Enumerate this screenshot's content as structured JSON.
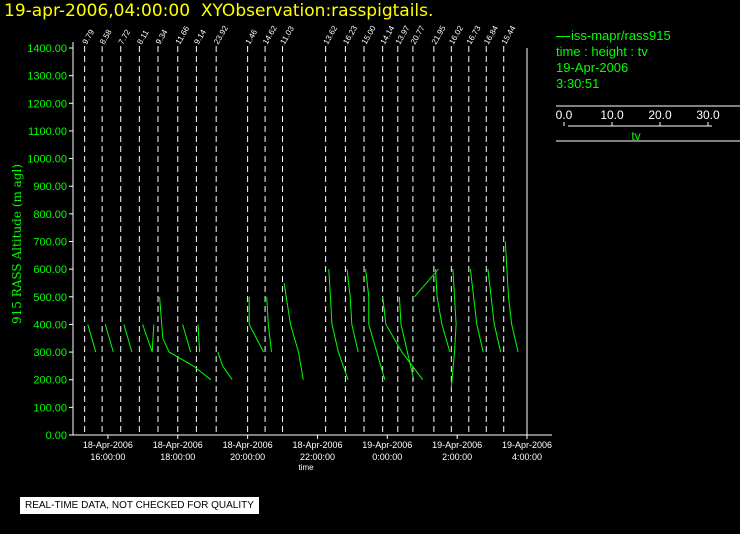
{
  "header": {
    "title": "19-apr-2006,04:00:00  XYObservation:rasspigtails."
  },
  "legend": {
    "station": "iss-mapr/rass915",
    "vars": "time : height : tv",
    "date": "19-Apr-2006",
    "time": "3:30:51",
    "scale_ticks": [
      "0.0",
      "10.0",
      "20.0",
      "30.0"
    ],
    "scale_label": "tv"
  },
  "footer": {
    "qc_note": "REAL-TIME DATA, NOT CHECKED FOR QUALITY"
  },
  "colors": {
    "background": "#000000",
    "axis": "#ffffff",
    "data": "#00ff00",
    "title": "#ffff00"
  },
  "chart_data": {
    "type": "line",
    "title": "19-apr-2006,04:00:00  XYObservation:rasspigtails.",
    "xlabel": "time",
    "ylabel": "915 RASS Altitude (m agl)",
    "ylim": [
      0,
      1400
    ],
    "yticks": [
      "0.00",
      "100.00",
      "200.00",
      "300.00",
      "400.00",
      "500.00",
      "600.00",
      "700.00",
      "800.00",
      "900.00",
      "1000.00",
      "1100.00",
      "1200.00",
      "1300.00",
      "1400.00"
    ],
    "xlim": [
      "2006-04-18T15:00",
      "2006-04-19T04:00"
    ],
    "xticks": [
      {
        "t": "2006-04-18T16:00",
        "date": "18-Apr-2006",
        "time": "16:00:00"
      },
      {
        "t": "2006-04-18T18:00",
        "date": "18-Apr-2006",
        "time": "18:00:00"
      },
      {
        "t": "2006-04-18T20:00",
        "date": "18-Apr-2006",
        "time": "20:00:00"
      },
      {
        "t": "2006-04-18T22:00",
        "date": "18-Apr-2006",
        "time": "22:00:00"
      },
      {
        "t": "2006-04-19T00:00",
        "date": "19-Apr-2006",
        "time": "0:00:00"
      },
      {
        "t": "2006-04-19T02:00",
        "date": "19-Apr-2006",
        "time": "2:00:00"
      },
      {
        "t": "2006-04-19T04:00",
        "date": "19-Apr-2006",
        "time": "4:00:00"
      }
    ],
    "tv_scale": [
      0,
      30
    ],
    "profiles": [
      {
        "time": "2006-04-18T15:20",
        "label": "9.79",
        "points": [
          [
            400,
            2
          ],
          [
            300,
            7
          ]
        ]
      },
      {
        "time": "2006-04-18T15:50",
        "label": "8.58",
        "points": [
          [
            400,
            2
          ],
          [
            300,
            7
          ]
        ]
      },
      {
        "time": "2006-04-18T16:22",
        "label": "7.72",
        "points": [
          [
            400,
            2
          ],
          [
            300,
            7
          ]
        ]
      },
      {
        "time": "2006-04-18T16:54",
        "label": "8.11",
        "points": [
          [
            400,
            2
          ],
          [
            300,
            8
          ],
          [
            400,
            9
          ]
        ]
      },
      {
        "time": "2006-04-18T17:26",
        "label": "9.34",
        "points": [
          [
            500,
            1
          ],
          [
            350,
            3
          ],
          [
            300,
            7
          ],
          [
            250,
            22
          ],
          [
            200,
            33
          ]
        ]
      },
      {
        "time": "2006-04-18T18:00",
        "label": "11.66",
        "points": [
          [
            400,
            3
          ],
          [
            300,
            8
          ]
        ]
      },
      {
        "time": "2006-04-18T18:32",
        "label": "9.14",
        "points": [
          [
            400,
            1
          ],
          [
            300,
            2
          ]
        ]
      },
      {
        "time": "2006-04-18T19:06",
        "label": "23.92",
        "points": [
          [
            300,
            1
          ],
          [
            250,
            4
          ],
          [
            200,
            10
          ]
        ]
      },
      {
        "time": "2006-04-18T20:00",
        "label": "1.46",
        "points": [
          [
            500,
            1
          ],
          [
            400,
            1
          ],
          [
            300,
            10
          ]
        ]
      },
      {
        "time": "2006-04-18T20:30",
        "label": "14.62",
        "points": [
          [
            500,
            1
          ],
          [
            400,
            2
          ],
          [
            300,
            4
          ]
        ]
      },
      {
        "time": "2006-04-18T21:00",
        "label": "11.03",
        "points": [
          [
            550,
            1
          ],
          [
            400,
            5
          ],
          [
            300,
            10
          ],
          [
            200,
            13
          ]
        ]
      },
      {
        "time": "2006-04-18T22:14",
        "label": "13.62",
        "points": [
          [
            600,
            2
          ],
          [
            400,
            4
          ],
          [
            300,
            8
          ],
          [
            200,
            14
          ]
        ]
      },
      {
        "time": "2006-04-18T22:48",
        "label": "16.23",
        "points": [
          [
            600,
            1
          ],
          [
            500,
            3
          ],
          [
            400,
            4
          ],
          [
            300,
            8
          ]
        ]
      },
      {
        "time": "2006-04-18T23:20",
        "label": "15.00",
        "points": [
          [
            600,
            1
          ],
          [
            500,
            3
          ],
          [
            400,
            3
          ],
          [
            300,
            8
          ],
          [
            200,
            13
          ]
        ]
      },
      {
        "time": "2006-04-18T23:52",
        "label": "14.14",
        "points": [
          [
            500,
            0
          ],
          [
            400,
            2
          ],
          [
            300,
            12
          ],
          [
            200,
            25
          ]
        ]
      },
      {
        "time": "2006-04-19T00:18",
        "label": "13.97",
        "points": [
          [
            500,
            1
          ],
          [
            400,
            2
          ],
          [
            300,
            6
          ],
          [
            200,
            10
          ]
        ]
      },
      {
        "time": "2006-04-19T00:44",
        "label": "20.77",
        "points": [
          [
            500,
            1
          ],
          [
            600,
            16
          ]
        ]
      },
      {
        "time": "2006-04-19T01:20",
        "label": "21.95",
        "points": [
          [
            600,
            1
          ],
          [
            500,
            2
          ],
          [
            400,
            5
          ],
          [
            300,
            10
          ]
        ]
      },
      {
        "time": "2006-04-19T01:50",
        "label": "16.02",
        "points": [
          [
            600,
            1
          ],
          [
            500,
            2
          ],
          [
            400,
            3
          ],
          [
            300,
            2
          ],
          [
            170,
            0
          ]
        ]
      },
      {
        "time": "2006-04-19T02:20",
        "label": "16.73",
        "points": [
          [
            600,
            1
          ],
          [
            500,
            3
          ],
          [
            400,
            5
          ],
          [
            300,
            9
          ]
        ]
      },
      {
        "time": "2006-04-19T02:50",
        "label": "16.84",
        "points": [
          [
            600,
            1
          ],
          [
            500,
            3
          ],
          [
            400,
            5
          ],
          [
            300,
            9
          ]
        ]
      },
      {
        "time": "2006-04-19T03:20",
        "label": "15.44",
        "points": [
          [
            700,
            1
          ],
          [
            500,
            3
          ],
          [
            400,
            5
          ],
          [
            300,
            9
          ]
        ]
      }
    ]
  }
}
